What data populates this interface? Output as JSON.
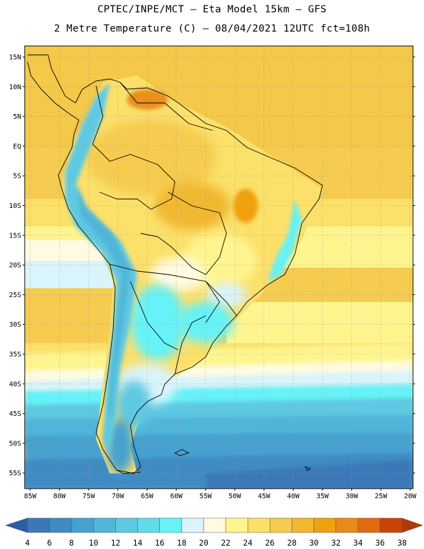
{
  "title_line1": "CPTEC/INPE/MCT –  Eta Model 15km – GFS",
  "title_line2": "2 Metre Temperature (C) – 08/04/2021 12UTC fct=108h",
  "lat_labels": [
    "15N",
    "10N",
    "5N",
    "EQ",
    "5S",
    "10S",
    "15S",
    "20S",
    "25S",
    "30S",
    "35S",
    "40S",
    "45S",
    "50S",
    "55S"
  ],
  "lon_labels": [
    "85W",
    "80W",
    "75W",
    "70W",
    "65W",
    "60W",
    "55W",
    "50W",
    "45W",
    "40W",
    "35W",
    "30W",
    "25W",
    "20W"
  ],
  "colorbar": {
    "labels": [
      "4",
      "6",
      "8",
      "10",
      "12",
      "14",
      "16",
      "18",
      "20",
      "22",
      "24",
      "26",
      "28",
      "30",
      "32",
      "34",
      "36",
      "38"
    ],
    "colors": [
      "#3a78b8",
      "#3f8bc4",
      "#46a1cf",
      "#4fb6da",
      "#5ec9e2",
      "#60dce8",
      "#66f2f7",
      "#d9f4fa",
      "#fffbe0",
      "#fff58f",
      "#fbe06a",
      "#f5cc50",
      "#f1b830",
      "#f0a10e",
      "#ea8a17",
      "#e16a10",
      "#c84408"
    ],
    "low_end_color": "#2a5fa8",
    "high_end_color": "#b03a06"
  }
}
